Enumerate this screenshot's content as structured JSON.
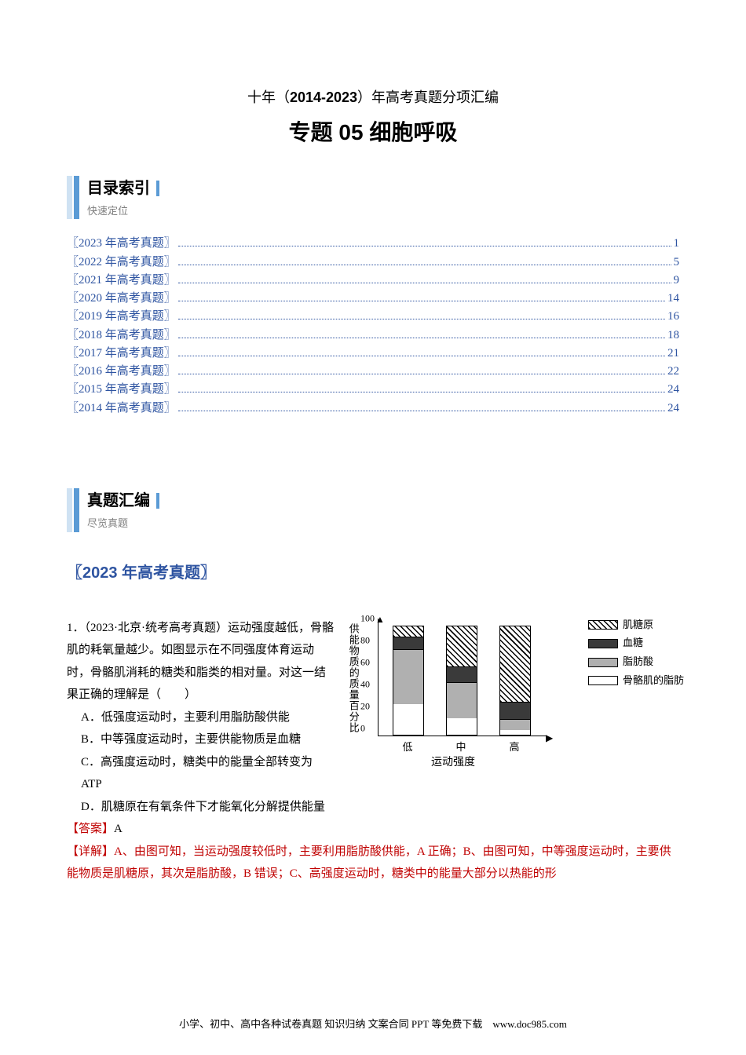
{
  "subtitle_prefix": "十年（",
  "subtitle_bold": "2014-2023",
  "subtitle_suffix": "）年高考真题分项汇编",
  "main_title": "专题 05  细胞呼吸",
  "section1": {
    "big": "目录索引",
    "small": "快速定位"
  },
  "section2": {
    "big": "真题汇编",
    "small": "尽览真题"
  },
  "toc": [
    {
      "label": "〖2023 年高考真题〗",
      "page": "1"
    },
    {
      "label": "〖2022 年高考真题〗",
      "page": "5"
    },
    {
      "label": "〖2021 年高考真题〗",
      "page": "9"
    },
    {
      "label": "〖2020 年高考真题〗",
      "page": "14"
    },
    {
      "label": "〖2019 年高考真题〗",
      "page": "16"
    },
    {
      "label": "〖2018 年高考真题〗",
      "page": "18"
    },
    {
      "label": "〖2017 年高考真题〗",
      "page": "21"
    },
    {
      "label": "〖2016 年高考真题〗",
      "page": "22"
    },
    {
      "label": "〖2015 年高考真题〗",
      "page": "24"
    },
    {
      "label": "〖2014 年高考真题〗",
      "page": "24"
    }
  ],
  "year_heading": "〖2023 年高考真题〗",
  "question": {
    "stem1": "1．（2023·北京·统考高考真题）运动强度越低，骨骼肌的耗氧量越少。如图显示在不同强度体育运动时，骨骼肌消耗的糖类和脂类的相对量。对这一结果正确的理解是（　　）",
    "optA": "A．低强度运动时，主要利用脂肪酸供能",
    "optB": "B．中等强度运动时，主要供能物质是血糖",
    "optC": "C．高强度运动时，糖类中的能量全部转变为 ATP",
    "optD": "D．肌糖原在有氧条件下才能氧化分解提供能量",
    "answer_label": "【答案】",
    "answer_val": "A",
    "explain_label": "【详解】",
    "explain_text": "A、由图可知，当运动强度较低时，主要利用脂肪酸供能，A 正确；B、由图可知，中等强度运动时，主要供能物质是肌糖原，其次是脂肪酸，B 错误；C、高强度运动时，糖类中的能量大部分以热能的形"
  },
  "chart": {
    "type": "stacked-bar",
    "y_label": "供能物质的质量百分比",
    "x_label": "运动强度",
    "y_ticks": [
      "0",
      "20",
      "40",
      "60",
      "80",
      "100"
    ],
    "x_categories": [
      "低",
      "中",
      "高"
    ],
    "legend": [
      {
        "key": "glycogen",
        "label": "肌糖原"
      },
      {
        "key": "blood",
        "label": "血糖"
      },
      {
        "key": "fatty",
        "label": "脂肪酸"
      },
      {
        "key": "fat",
        "label": "骨骼肌的脂肪"
      }
    ],
    "colors": {
      "glycogen_pattern": "#000000",
      "blood": "#3a3a3a",
      "fatty": "#b0b0b0",
      "fat": "#ffffff",
      "border": "#000000",
      "background": "#ffffff"
    },
    "ylim": [
      0,
      100
    ],
    "bar_width_ratio": 0.6,
    "bars": [
      {
        "glycogen": 11,
        "blood": 11,
        "fatty": 50,
        "fat": 28
      },
      {
        "glycogen": 38,
        "blood": 14,
        "fatty": 33,
        "fat": 15
      },
      {
        "glycogen": 70,
        "blood": 16,
        "fatty": 10,
        "fat": 4
      }
    ]
  },
  "footer": "小学、初中、高中各种试卷真题  知识归纳  文案合同  PPT 等免费下载　www.doc985.com"
}
